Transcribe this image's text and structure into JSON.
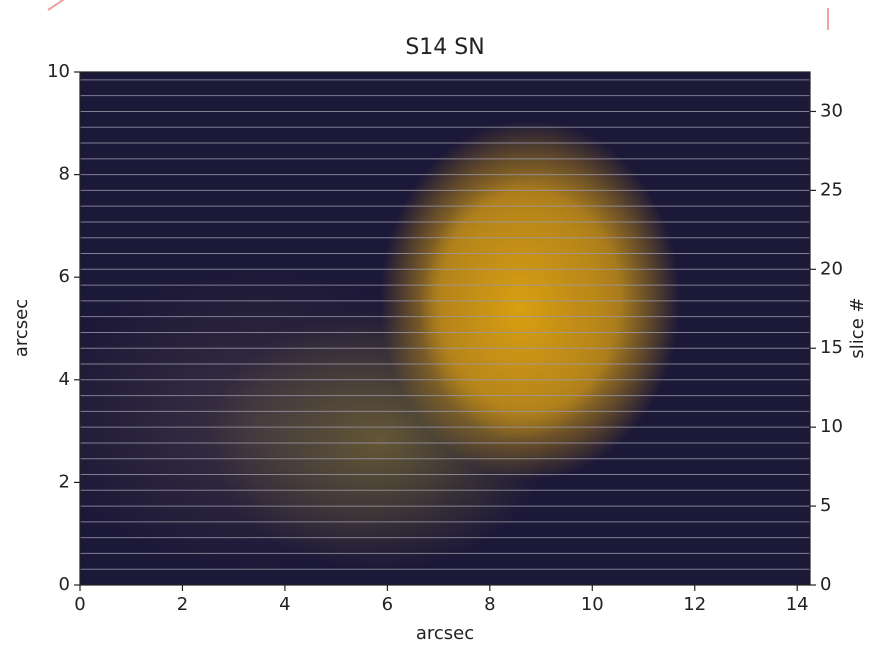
{
  "chart_data": {
    "type": "image",
    "title": "S14 SN",
    "xlabel": "arcsec",
    "ylabel": "arcsec",
    "y2label": "slice #",
    "xlim": [
      0,
      14.25
    ],
    "xticks": [
      0,
      2,
      4,
      6,
      8,
      10,
      12,
      14
    ],
    "ylim": [
      0,
      10
    ],
    "yticks": [
      0,
      2,
      4,
      6,
      8,
      10
    ],
    "y2lim": [
      0,
      32.5
    ],
    "y2ticks": [
      0,
      5,
      10,
      15,
      20,
      25,
      30
    ]
  }
}
